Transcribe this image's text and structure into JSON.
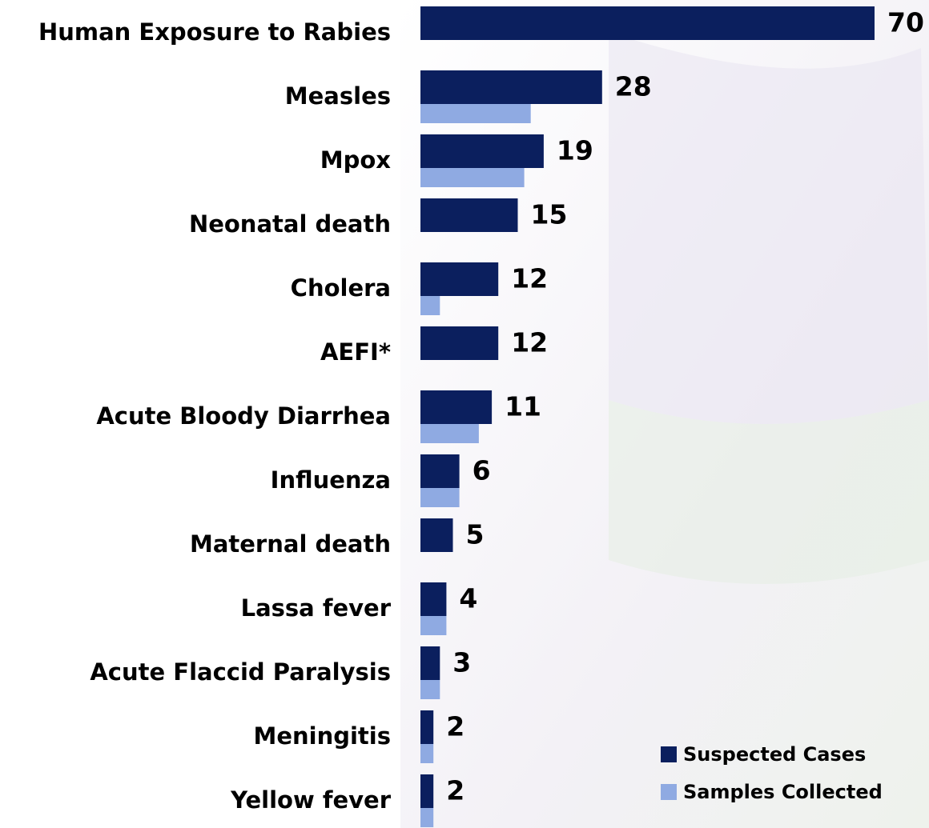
{
  "chart_data": {
    "type": "bar",
    "orientation": "horizontal",
    "categories": [
      "Human Exposure to Rabies",
      "Measles",
      "Mpox",
      "Neonatal death",
      "Cholera",
      "AEFI*",
      "Acute Bloody Diarrhea",
      "Influenza",
      "Maternal death",
      "Lassa fever",
      "Acute Flaccid Paralysis",
      "Meningitis",
      "Yellow fever"
    ],
    "series": [
      {
        "name": "Suspected Cases",
        "color": "#0b1f5e",
        "values": [
          70,
          28,
          19,
          15,
          12,
          12,
          11,
          6,
          5,
          4,
          3,
          2,
          2
        ]
      },
      {
        "name": "Samples Collected",
        "color": "#8faae2",
        "values": [
          null,
          17,
          16,
          null,
          3,
          null,
          9,
          6,
          null,
          4,
          3,
          2,
          2
        ]
      }
    ],
    "legend": "bottom-right"
  }
}
